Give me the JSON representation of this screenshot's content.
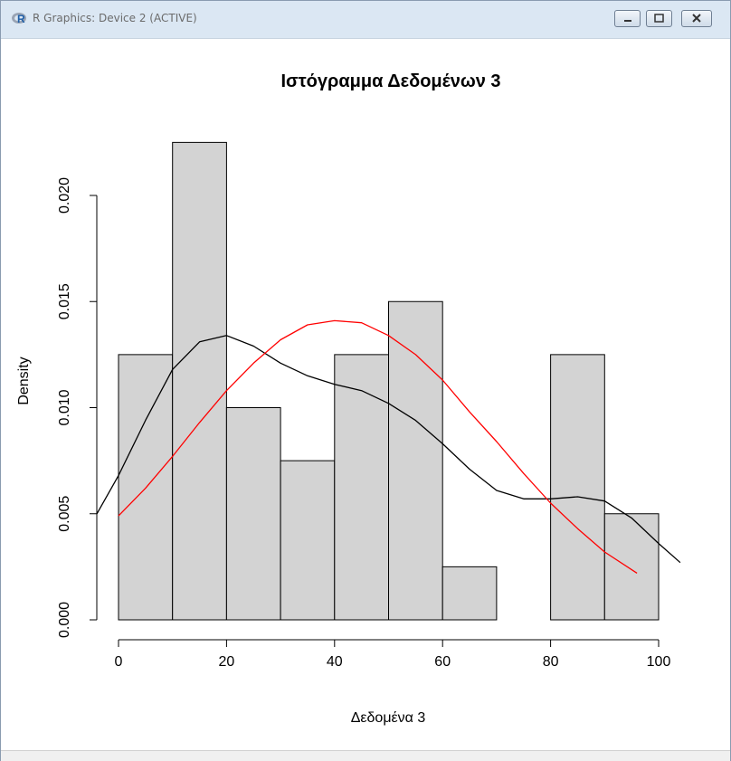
{
  "window": {
    "title": "R Graphics: Device 2 (ACTIVE)",
    "icon": "r-logo-icon",
    "controls": [
      "minimize-icon",
      "maximize-icon",
      "close-icon"
    ]
  },
  "chart_data": {
    "type": "bar",
    "title": "Ιστόγραμμα Δεδομένων 3",
    "xlabel": "Δεδομένα 3",
    "ylabel": "Density",
    "bins": [
      {
        "x0": 0,
        "x1": 10,
        "value": 0.0125
      },
      {
        "x0": 10,
        "x1": 20,
        "value": 0.0225
      },
      {
        "x0": 20,
        "x1": 30,
        "value": 0.01
      },
      {
        "x0": 30,
        "x1": 40,
        "value": 0.0075
      },
      {
        "x0": 40,
        "x1": 50,
        "value": 0.0125
      },
      {
        "x0": 50,
        "x1": 60,
        "value": 0.015
      },
      {
        "x0": 60,
        "x1": 70,
        "value": 0.0025
      },
      {
        "x0": 70,
        "x1": 80,
        "value": 0
      },
      {
        "x0": 80,
        "x1": 90,
        "value": 0.0125
      },
      {
        "x0": 90,
        "x1": 100,
        "value": 0.005
      }
    ],
    "xticks": [
      0,
      20,
      40,
      60,
      80,
      100
    ],
    "xtick_labels": [
      "0",
      "20",
      "40",
      "60",
      "80",
      "100"
    ],
    "yticks": [
      0,
      0.005,
      0.01,
      0.015,
      0.02
    ],
    "ytick_labels": [
      "0.000",
      "0.005",
      "0.010",
      "0.015",
      "0.020"
    ],
    "xlim": [
      -4,
      104
    ],
    "ylim": [
      0,
      0.0225
    ],
    "grid": false,
    "bar_color": "#d3d3d3",
    "series": [
      {
        "style": "density",
        "color": "#000000",
        "x": [
          -4,
          0,
          5,
          10,
          15,
          20,
          25,
          30,
          35,
          40,
          45,
          50,
          55,
          60,
          65,
          70,
          75,
          80,
          85,
          90,
          95,
          100,
          104
        ],
        "y": [
          0.005,
          0.0068,
          0.0094,
          0.0118,
          0.0131,
          0.0134,
          0.0129,
          0.0121,
          0.0115,
          0.0111,
          0.0108,
          0.0102,
          0.0094,
          0.0083,
          0.0071,
          0.0061,
          0.0057,
          0.0057,
          0.0058,
          0.0056,
          0.0048,
          0.0036,
          0.0027
        ]
      },
      {
        "style": "normal-curve",
        "color": "#ff0000",
        "x": [
          0,
          5,
          10,
          15,
          20,
          25,
          30,
          35,
          40,
          45,
          50,
          55,
          60,
          65,
          70,
          75,
          80,
          85,
          90,
          96
        ],
        "y": [
          0.0049,
          0.0062,
          0.0077,
          0.0093,
          0.0108,
          0.0121,
          0.0132,
          0.0139,
          0.0141,
          0.014,
          0.0134,
          0.0125,
          0.0113,
          0.0098,
          0.0084,
          0.0069,
          0.0055,
          0.0043,
          0.0032,
          0.0022
        ]
      }
    ]
  }
}
